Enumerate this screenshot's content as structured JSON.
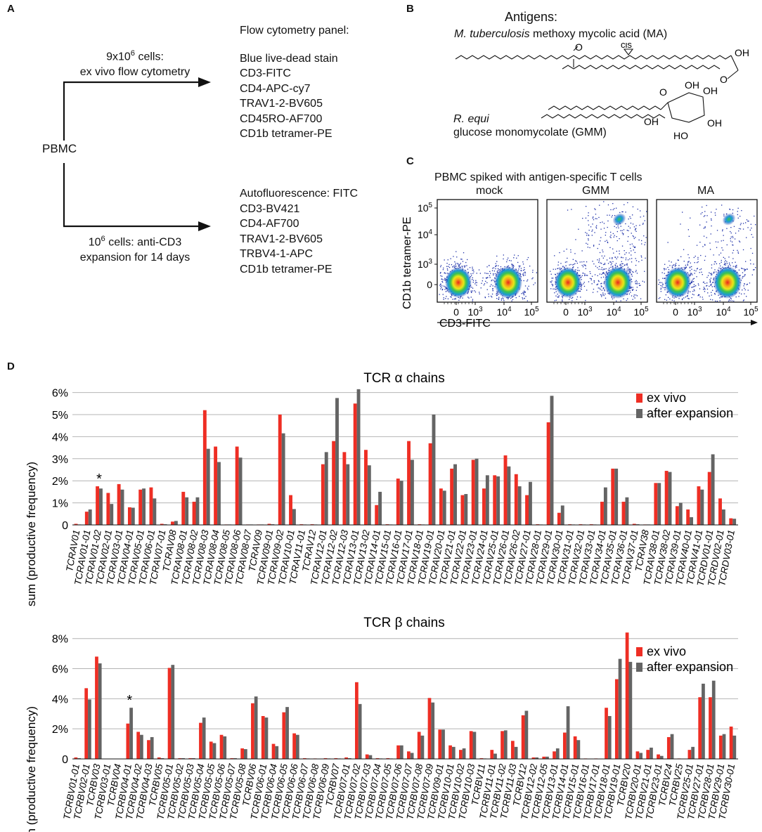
{
  "panel_a": {
    "label": "A",
    "pbmc": "PBMC",
    "top_arrow_label": [
      "9x10^6 cells:",
      "ex vivo flow cytometry"
    ],
    "bottom_arrow_label": [
      "10^6 cells: anti-CD3",
      "expansion for 14 days"
    ],
    "panel1_title": "Flow cytometry panel:",
    "panel1_items": [
      "Blue live-dead stain",
      "CD3-FITC",
      "CD4-APC-cy7",
      "TRAV1-2-BV605",
      "CD45RO-AF700",
      "CD1b tetramer-PE"
    ],
    "panel2_items": [
      "Autofluorescence: FITC",
      "CD3-BV421",
      "CD4-AF700",
      "TRAV1-2-BV605",
      "TRBV4-1-APC",
      "CD1b tetramer-PE"
    ]
  },
  "panel_b": {
    "label": "B",
    "title": "Antigens:",
    "ma_species": "M. tuberculosis",
    "ma_name": " methoxy mycolic acid (MA)",
    "gmm_species": "R. equi",
    "gmm_name": "glucose monomycolate (GMM)",
    "atoms": {
      "o_minus": "O",
      "cis": "cis",
      "oh": "OH",
      "o": "O",
      "o_top": "O",
      "ho": "HO"
    }
  },
  "panel_c": {
    "label": "C",
    "title": "PBMC spiked with antigen-specific T cells",
    "subplots": [
      "mock",
      "GMM",
      "MA"
    ],
    "ylabel": "CD1b tetramer-PE",
    "xlabel": "CD3-FITC",
    "yticks": [
      "10^5",
      "10^4",
      "10^3",
      "0"
    ],
    "xticks": [
      "0",
      "10^3",
      "10^4",
      "10^5"
    ]
  },
  "panel_d": {
    "label": "D"
  },
  "colors": {
    "ex_vivo": "#ee2e24",
    "after_expansion": "#646464",
    "grid": "#b4b4b4"
  },
  "chart_data": [
    {
      "type": "bar",
      "title": "TCR α chains",
      "ylabel": "sum (productive frequency)",
      "ylim": [
        0,
        6.4
      ],
      "yticks": [
        "0",
        "1%",
        "2%",
        "3%",
        "4%",
        "5%",
        "6%"
      ],
      "annotation": {
        "text": "*",
        "category": "TCRAV01-02"
      },
      "categories": [
        "TCRAV01",
        "TCRAV01-01",
        "TCRAV01-02",
        "TCRAV02-01",
        "TCRAV03-01",
        "TCRAV04-01",
        "TCRAV05-01",
        "TCRAV06-01",
        "TCRAV07-01",
        "TCRAV08",
        "TCRAV08-01",
        "TCRAV08-02",
        "TCRAV08-03",
        "TCRAV08-04",
        "TCRAV08-05",
        "TCRAV08-06",
        "TCRAV08-07",
        "TCRAV09",
        "TCRAV09-01",
        "TCRAV09-02",
        "TCRAV10-01",
        "TCRAV11-01",
        "TCRAV12",
        "TCRAV12-01",
        "TCRAV12-02",
        "TCRAV12-03",
        "TCRAV13-01",
        "TCRAV13-02",
        "TCRAV14-01",
        "TCRAV15-01",
        "TCRAV16-01",
        "TCRAV17-01",
        "TCRAV18-01",
        "TCRAV19-01",
        "TCRAV20-01",
        "TCRAV21-01",
        "TCRAV22-01",
        "TCRAV23-01",
        "TCRAV24-01",
        "TCRAV25-01",
        "TCRAV26-01",
        "TCRAV26-02",
        "TCRAV27-01",
        "TCRAV28-01",
        "TCRAV29-01",
        "TCRAV30-01",
        "TCRAV31-01",
        "TCRAV32-01",
        "TCRAV33-01",
        "TCRAV34-01",
        "TCRAV35-01",
        "TCRAV36-01",
        "TCRAV37-01",
        "TCRAV38",
        "TCRAV38-01",
        "TCRAV38-02",
        "TCRAV39-01",
        "TCRAV40-01",
        "TCRAV41-01",
        "TCRDV01-01",
        "TCRDV02-01",
        "TCRDV03-01"
      ],
      "series": [
        {
          "name": "ex vivo",
          "values": [
            0.05,
            0.6,
            1.75,
            1.45,
            1.85,
            0.8,
            1.6,
            1.7,
            0.05,
            0.15,
            1.5,
            1.05,
            5.2,
            3.55,
            0.02,
            3.55,
            0.02,
            0.02,
            0.05,
            5.0,
            1.35,
            0.03,
            0.03,
            2.75,
            3.8,
            3.3,
            5.5,
            3.4,
            0.9,
            0.03,
            2.1,
            3.8,
            0.03,
            3.7,
            1.65,
            2.55,
            1.35,
            2.95,
            1.65,
            2.25,
            3.15,
            2.3,
            1.35,
            0.03,
            4.65,
            0.55,
            0.03,
            0.03,
            0.03,
            1.05,
            2.55,
            1.05,
            0.05,
            0.02,
            1.9,
            2.45,
            0.85,
            0.7,
            1.75,
            2.4,
            1.2,
            0.3
          ]
        },
        {
          "name": "after expansion",
          "values": [
            0.02,
            0.7,
            1.65,
            0.95,
            1.6,
            0.78,
            1.65,
            1.2,
            0.03,
            0.18,
            1.25,
            1.25,
            3.45,
            2.85,
            0.02,
            3.05,
            0.02,
            0.02,
            0.03,
            4.15,
            0.72,
            0.02,
            0.02,
            3.3,
            5.75,
            2.75,
            6.15,
            2.7,
            1.5,
            0.02,
            2.0,
            2.95,
            0.02,
            5.0,
            1.55,
            2.75,
            1.4,
            3.0,
            2.25,
            2.2,
            2.65,
            1.75,
            1.95,
            0.02,
            5.85,
            0.88,
            0.02,
            0.02,
            0.02,
            1.7,
            2.55,
            1.25,
            0.03,
            0.02,
            1.9,
            2.4,
            1.0,
            0.35,
            1.6,
            3.2,
            0.7,
            0.28
          ]
        }
      ]
    },
    {
      "type": "bar",
      "title": "TCR β chains",
      "ylabel": "sum (productive frequency)",
      "ylim": [
        0,
        8.5
      ],
      "yticks": [
        "0",
        "2%",
        "4%",
        "6%",
        "8%"
      ],
      "annotation": {
        "text": "*",
        "category": "TCRBV04-01"
      },
      "categories": [
        "TCRBV01-01",
        "TCRBV02-01",
        "TCRBV03",
        "TCRBV03-01",
        "TCRBV04",
        "TCRBV04-01",
        "TCRBV04-02",
        "TCRBV04-03",
        "TCRBV05",
        "TCRBV05-01",
        "TCRBV05-02",
        "TCRBV05-03",
        "TCRBV05-04",
        "TCRBV05-05",
        "TCRBV05-06",
        "TCRBV05-07",
        "TCRBV05-08",
        "TCRBV06",
        "TCRBV06-01",
        "TCRBV06-04",
        "TCRBV06-05",
        "TCRBV06-06",
        "TCRBV06-07",
        "TCRBV06-08",
        "TCRBV06-09",
        "TCRBV07",
        "TCRBV07-01",
        "TCRBV07-02",
        "TCRBV07-03",
        "TCRBV07-04",
        "TCRBV07-05",
        "TCRBV07-06",
        "TCRBV07-07",
        "TCRBV07-08",
        "TCRBV07-09",
        "TCRBV09-01",
        "TCRBV10-01",
        "TCRBV10-02",
        "TCRBV10-03",
        "TCRBV11",
        "TCRBV11-01",
        "TCRBV11-02",
        "TCRBV11-03",
        "TCRBV12",
        "TCRBV12-02",
        "TCRBV12-05",
        "TCRBV13-01",
        "TCRBV14-01",
        "TCRBV15-01",
        "TCRBV16-01",
        "TCRBV17-01",
        "TCRBV18-01",
        "TCRBV19-01",
        "TCRBV20",
        "TCRBV20-01",
        "TCRBV21-01",
        "TCRBV23-01",
        "TCRBV24",
        "TCRBV25",
        "TCRBV25-01",
        "TCRBV27-01",
        "TCRBV28-01",
        "TCRBV29-01",
        "TCRBV30-01"
      ],
      "series": [
        {
          "name": "ex vivo",
          "values": [
            0.1,
            4.7,
            6.8,
            0.02,
            0.02,
            2.35,
            1.8,
            1.25,
            0.1,
            6.05,
            0.05,
            0.05,
            2.4,
            1.15,
            1.6,
            0.05,
            0.7,
            3.7,
            2.85,
            1.0,
            3.1,
            1.7,
            0.05,
            0.03,
            0.05,
            0.05,
            0.1,
            5.1,
            0.3,
            0.05,
            0.05,
            0.9,
            0.5,
            1.8,
            4.05,
            1.95,
            0.9,
            0.6,
            1.85,
            0.05,
            0.6,
            1.85,
            1.2,
            2.9,
            0.1,
            0.15,
            0.5,
            1.75,
            1.5,
            0.03,
            0.03,
            3.4,
            5.3,
            8.4,
            0.5,
            0.6,
            0.3,
            1.45,
            0.03,
            0.6,
            4.1,
            4.1,
            1.55,
            2.15
          ]
        },
        {
          "name": "after expansion",
          "values": [
            0.05,
            3.95,
            6.35,
            0.02,
            0.02,
            3.4,
            1.6,
            1.45,
            0.05,
            6.25,
            0.05,
            0.05,
            2.75,
            1.05,
            1.5,
            0.05,
            0.65,
            4.15,
            2.75,
            0.85,
            3.45,
            1.6,
            0.03,
            0.02,
            0.03,
            0.03,
            0.05,
            3.65,
            0.25,
            0.03,
            0.03,
            0.9,
            0.4,
            1.55,
            3.75,
            1.95,
            0.8,
            0.7,
            1.8,
            0.03,
            0.35,
            1.9,
            0.8,
            3.2,
            0.1,
            0.15,
            0.7,
            3.5,
            1.25,
            0.02,
            0.02,
            2.85,
            6.65,
            6.45,
            0.4,
            0.75,
            0.2,
            1.65,
            0.02,
            0.8,
            5.0,
            5.2,
            1.65,
            1.55
          ]
        }
      ]
    }
  ]
}
